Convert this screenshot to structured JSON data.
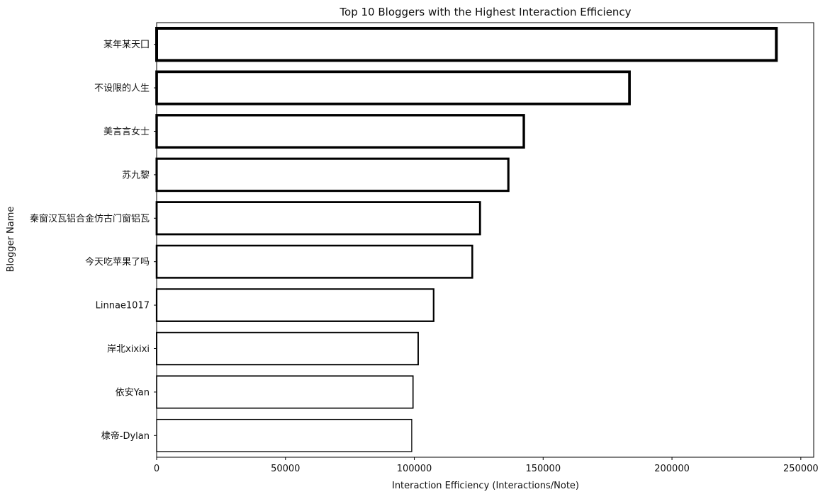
{
  "chart_data": {
    "type": "bar",
    "orientation": "horizontal",
    "title": "Top 10 Bloggers with the Highest Interaction Efficiency",
    "xlabel": "Interaction Efficiency (Interactions/Note)",
    "ylabel": "Blogger Name",
    "categories": [
      "某年某天囗",
      "不设限的人生",
      "美言言女士",
      "苏九黎",
      "秦窗汉瓦铝合金仿古门窗铝瓦",
      "今天吃苹果了吗",
      "Linnae1017",
      "岸北xixixi",
      "依安Yan",
      "棣帝-Dylan"
    ],
    "values": [
      240500,
      183500,
      142500,
      136500,
      125500,
      122500,
      107500,
      101500,
      99500,
      99000
    ],
    "xlim": [
      0,
      255000
    ],
    "xticks": [
      0,
      50000,
      100000,
      150000,
      200000,
      250000
    ],
    "grid": false,
    "bar_fill": "#ffffff",
    "bar_edge": "#000000"
  }
}
